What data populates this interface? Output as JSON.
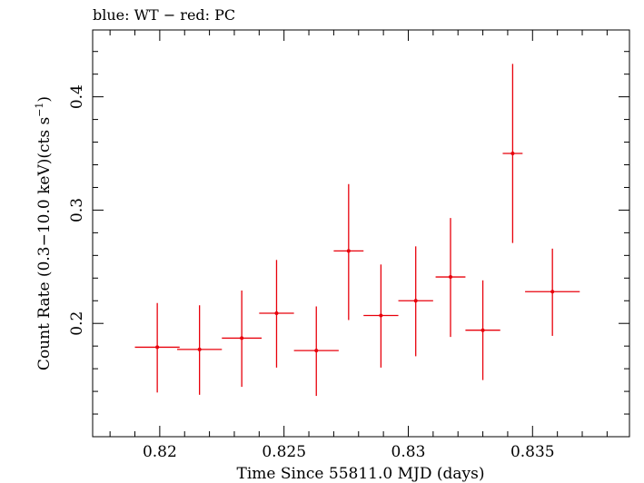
{
  "chart_data": {
    "type": "scatter",
    "title": "blue: WT − red: PC",
    "xlabel": "Time Since 55811.0 MJD (days)",
    "ylabel": "Count Rate (0.3−10.0 keV)(cts s",
    "ylabel_sup": "−1",
    "ylabel_end": ")",
    "xlim": [
      0.8173,
      0.8389
    ],
    "ylim": [
      0.1,
      0.459
    ],
    "x_ticks": [
      {
        "value": 0.82,
        "label": "0.82"
      },
      {
        "value": 0.825,
        "label": "0.825"
      },
      {
        "value": 0.83,
        "label": "0.83"
      },
      {
        "value": 0.835,
        "label": "0.835"
      }
    ],
    "y_ticks": [
      {
        "value": 0.2,
        "label": "0.2"
      },
      {
        "value": 0.3,
        "label": "0.3"
      },
      {
        "value": 0.4,
        "label": "0.4"
      }
    ],
    "grid": false,
    "series": [
      {
        "name": "PC",
        "color": "#e8000b",
        "points": [
          {
            "x": 0.8199,
            "y": 0.179,
            "xerr": 0.0009,
            "ylo": 0.139,
            "yhi": 0.218
          },
          {
            "x": 0.8216,
            "y": 0.177,
            "xerr": 0.0009,
            "ylo": 0.137,
            "yhi": 0.216
          },
          {
            "x": 0.8233,
            "y": 0.187,
            "xerr": 0.0008,
            "ylo": 0.144,
            "yhi": 0.229
          },
          {
            "x": 0.8247,
            "y": 0.209,
            "xerr": 0.0007,
            "ylo": 0.161,
            "yhi": 0.256
          },
          {
            "x": 0.8263,
            "y": 0.176,
            "xerr": 0.0009,
            "ylo": 0.136,
            "yhi": 0.215
          },
          {
            "x": 0.8276,
            "y": 0.264,
            "xerr": 0.0006,
            "ylo": 0.203,
            "yhi": 0.323
          },
          {
            "x": 0.8289,
            "y": 0.207,
            "xerr": 0.0007,
            "ylo": 0.161,
            "yhi": 0.252
          },
          {
            "x": 0.8303,
            "y": 0.22,
            "xerr": 0.0007,
            "ylo": 0.171,
            "yhi": 0.268
          },
          {
            "x": 0.8317,
            "y": 0.241,
            "xerr": 0.0006,
            "ylo": 0.188,
            "yhi": 0.293
          },
          {
            "x": 0.833,
            "y": 0.194,
            "xerr": 0.0007,
            "ylo": 0.15,
            "yhi": 0.238
          },
          {
            "x": 0.8342,
            "y": 0.35,
            "xerr": 0.0004,
            "ylo": 0.271,
            "yhi": 0.429
          },
          {
            "x": 0.8358,
            "y": 0.228,
            "xerr": 0.0011,
            "ylo": 0.189,
            "yhi": 0.266
          }
        ]
      }
    ]
  }
}
